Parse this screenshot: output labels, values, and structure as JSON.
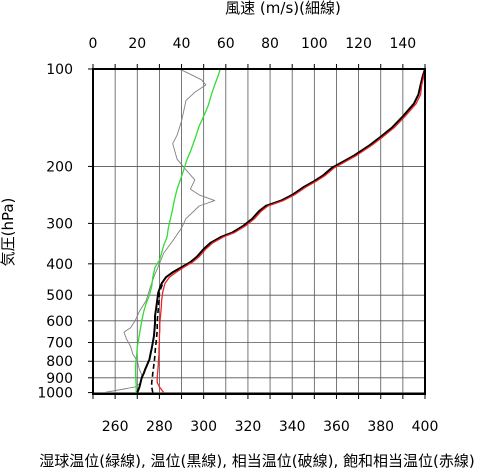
{
  "chart_data": {
    "type": "line",
    "top_axis": {
      "title": "風速 (m/s)(細線)",
      "range": [
        0,
        150
      ],
      "ticks": [
        0,
        20,
        40,
        60,
        80,
        100,
        120,
        140
      ]
    },
    "bottom_axis": {
      "title": "湿球温位(緑線), 温位(黒線), 相当温位(破線), 飽和相当温位(赤線)",
      "range": [
        250,
        400
      ],
      "ticks": [
        260,
        280,
        300,
        320,
        340,
        360,
        380,
        400
      ]
    },
    "y_axis": {
      "title": "気圧(hPa)",
      "scale": "log",
      "inverted": true,
      "range": [
        1010,
        100
      ],
      "ticks": [
        100,
        200,
        300,
        400,
        500,
        600,
        700,
        800,
        900,
        1000
      ]
    },
    "grid": true,
    "series": [
      {
        "name": "風速",
        "axis": "top",
        "color": "#808080",
        "style": "thin",
        "points": [
          [
            5,
            1000
          ],
          [
            14,
            975
          ],
          [
            19,
            960
          ],
          [
            21,
            940
          ],
          [
            22,
            910
          ],
          [
            22,
            880
          ],
          [
            21,
            850
          ],
          [
            20,
            800
          ],
          [
            18,
            760
          ],
          [
            17,
            720
          ],
          [
            15,
            680
          ],
          [
            14,
            650
          ],
          [
            17,
            630
          ],
          [
            19,
            600
          ],
          [
            21,
            560
          ],
          [
            24,
            520
          ],
          [
            26,
            470
          ],
          [
            28,
            430
          ],
          [
            30,
            400
          ],
          [
            32,
            370
          ],
          [
            36,
            340
          ],
          [
            40,
            310
          ],
          [
            42,
            290
          ],
          [
            48,
            265
          ],
          [
            55,
            255
          ],
          [
            48,
            245
          ],
          [
            44,
            235
          ],
          [
            46,
            220
          ],
          [
            42,
            205
          ],
          [
            38,
            190
          ],
          [
            36,
            170
          ],
          [
            38,
            160
          ],
          [
            40,
            145
          ],
          [
            41,
            135
          ],
          [
            42,
            125
          ],
          [
            46,
            118
          ],
          [
            51,
            112
          ],
          [
            49,
            108
          ],
          [
            43,
            103
          ],
          [
            39,
            100
          ]
        ]
      },
      {
        "name": "湿球温位",
        "axis": "bottom",
        "color": "#33dd33",
        "style": "solid",
        "points": [
          [
            269.5,
            1000
          ],
          [
            269.5,
            950
          ],
          [
            269.3,
            900
          ],
          [
            269.2,
            850
          ],
          [
            269.4,
            800
          ],
          [
            269.8,
            760
          ],
          [
            270.0,
            720
          ],
          [
            270.5,
            690
          ],
          [
            271.0,
            660
          ],
          [
            271.5,
            630
          ],
          [
            272.0,
            600
          ],
          [
            273.0,
            560
          ],
          [
            274.0,
            530
          ],
          [
            275.5,
            500
          ],
          [
            276.5,
            470
          ],
          [
            277.0,
            440
          ],
          [
            278.0,
            410
          ],
          [
            280.0,
            390
          ],
          [
            281.0,
            370
          ],
          [
            282.0,
            350
          ],
          [
            283.5,
            330
          ],
          [
            284.0,
            310
          ],
          [
            285.0,
            290
          ],
          [
            286.0,
            270
          ],
          [
            287.0,
            250
          ],
          [
            288.0,
            235
          ],
          [
            289.5,
            220
          ],
          [
            291.0,
            205
          ],
          [
            292.5,
            190
          ],
          [
            294.0,
            180
          ],
          [
            296.0,
            165
          ],
          [
            298.0,
            150
          ],
          [
            300.0,
            140
          ],
          [
            302.0,
            130
          ],
          [
            303.5,
            120
          ],
          [
            305.0,
            112
          ],
          [
            306.5,
            105
          ],
          [
            307.5,
            100
          ]
        ]
      },
      {
        "name": "温位",
        "axis": "bottom",
        "color": "#000000",
        "style": "solid",
        "points": [
          [
            270.0,
            1000
          ],
          [
            271.0,
            960
          ],
          [
            271.5,
            930
          ],
          [
            272.0,
            900
          ],
          [
            273.0,
            870
          ],
          [
            273.5,
            850
          ],
          [
            274.5,
            820
          ],
          [
            275.5,
            790
          ],
          [
            276.0,
            760
          ],
          [
            276.5,
            730
          ],
          [
            277.0,
            700
          ],
          [
            277.5,
            670
          ],
          [
            277.8,
            640
          ],
          [
            278.0,
            610
          ],
          [
            278.0,
            580
          ],
          [
            278.5,
            550
          ],
          [
            279.0,
            520
          ],
          [
            279.5,
            490
          ],
          [
            281.0,
            460
          ],
          [
            283.0,
            440
          ],
          [
            286.0,
            425
          ],
          [
            290.0,
            410
          ],
          [
            294.0,
            395
          ],
          [
            297.0,
            380
          ],
          [
            300.0,
            360
          ],
          [
            303.0,
            345
          ],
          [
            308.0,
            330
          ],
          [
            313.0,
            320
          ],
          [
            318.0,
            305
          ],
          [
            322.0,
            290
          ],
          [
            325.0,
            275
          ],
          [
            328.0,
            265
          ],
          [
            335.0,
            255
          ],
          [
            340.0,
            245
          ],
          [
            345.0,
            232
          ],
          [
            350.0,
            222
          ],
          [
            354.0,
            213
          ],
          [
            358.0,
            202
          ],
          [
            362.0,
            195
          ],
          [
            368.0,
            185
          ],
          [
            375.0,
            172
          ],
          [
            380.0,
            162
          ],
          [
            385.0,
            152
          ],
          [
            390.0,
            140
          ],
          [
            395.0,
            128
          ],
          [
            397.0,
            120
          ],
          [
            398.0,
            112
          ],
          [
            399.0,
            105
          ],
          [
            400.0,
            100
          ]
        ]
      },
      {
        "name": "相当温位",
        "axis": "bottom",
        "color": "#000000",
        "style": "dashed",
        "points": [
          [
            277.0,
            1000
          ],
          [
            276.5,
            960
          ],
          [
            276.5,
            930
          ],
          [
            276.8,
            900
          ],
          [
            277.0,
            870
          ],
          [
            277.2,
            850
          ],
          [
            277.5,
            820
          ],
          [
            277.8,
            790
          ],
          [
            278.0,
            760
          ],
          [
            278.2,
            730
          ],
          [
            278.5,
            700
          ],
          [
            278.8,
            670
          ],
          [
            279.0,
            640
          ],
          [
            279.0,
            610
          ],
          [
            279.2,
            580
          ],
          [
            279.5,
            550
          ],
          [
            279.8,
            520
          ],
          [
            280.0,
            490
          ],
          [
            281.5,
            460
          ]
        ]
      },
      {
        "name": "飽和相当温位",
        "axis": "bottom",
        "color": "#ee2222",
        "style": "solid",
        "points": [
          [
            282.0,
            1000
          ],
          [
            280.0,
            960
          ],
          [
            279.0,
            930
          ],
          [
            279.0,
            900
          ],
          [
            279.2,
            870
          ],
          [
            279.3,
            850
          ],
          [
            279.5,
            820
          ],
          [
            279.6,
            790
          ],
          [
            279.8,
            760
          ],
          [
            279.8,
            730
          ],
          [
            280.0,
            700
          ],
          [
            280.0,
            670
          ],
          [
            280.2,
            640
          ],
          [
            280.2,
            610
          ],
          [
            280.5,
            580
          ],
          [
            280.8,
            550
          ],
          [
            281.0,
            520
          ],
          [
            281.5,
            490
          ],
          [
            282.5,
            460
          ],
          [
            284.5,
            440
          ],
          [
            287.5,
            425
          ],
          [
            291.0,
            410
          ],
          [
            295.0,
            395
          ],
          [
            298.0,
            380
          ],
          [
            301.0,
            360
          ],
          [
            304.0,
            345
          ],
          [
            309.0,
            330
          ],
          [
            314.0,
            320
          ],
          [
            319.0,
            305
          ],
          [
            323.0,
            290
          ],
          [
            326.0,
            275
          ],
          [
            329.0,
            265
          ],
          [
            336.0,
            255
          ],
          [
            341.0,
            245
          ],
          [
            346.0,
            232
          ],
          [
            351.0,
            222
          ],
          [
            355.0,
            213
          ],
          [
            359.0,
            202
          ],
          [
            363.0,
            195
          ],
          [
            369.0,
            185
          ],
          [
            376.0,
            172
          ],
          [
            381.0,
            162
          ],
          [
            386.0,
            152
          ],
          [
            391.0,
            140
          ],
          [
            396.0,
            128
          ],
          [
            398.0,
            120
          ],
          [
            398.5,
            112
          ],
          [
            399.5,
            105
          ],
          [
            400.0,
            100
          ]
        ]
      }
    ]
  }
}
